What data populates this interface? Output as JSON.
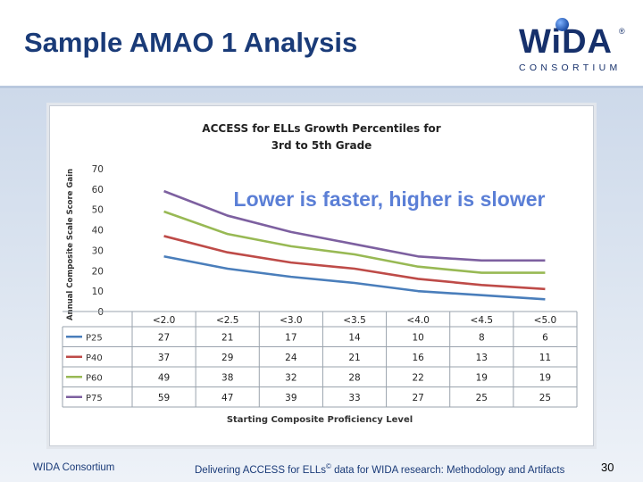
{
  "slide": {
    "title": "Sample AMAO 1 Analysis",
    "footer_left": "WIDA Consortium",
    "footer_center_pre": "Delivering ACCESS for ELLs",
    "footer_center_sup": "©",
    "footer_center_post": " data for WIDA research: Methodology and Artifacts",
    "page_number": "30"
  },
  "logo": {
    "word": "WiDA",
    "registered": "®",
    "subtitle": "CONSORTIUM"
  },
  "chart_data": {
    "type": "line",
    "title_line1": "ACCESS  for ELLs Growth Percentiles for",
    "title_line2": "3rd to 5th Grade",
    "annotation": "Lower is faster, higher is slower",
    "ylabel": "Annual Composite Scale Score Gain",
    "xlabel": "Starting Composite Proficiency Level",
    "ylim": [
      0,
      70
    ],
    "yticks": [
      0,
      10,
      20,
      30,
      40,
      50,
      60,
      70
    ],
    "categories": [
      "<2.0",
      "<2.5",
      "<3.0",
      "<3.5",
      "<4.0",
      "<4.5",
      "<5.0"
    ],
    "series": [
      {
        "name": "P25",
        "color": "#4a7ebb",
        "values": [
          27,
          21,
          17,
          14,
          10,
          8,
          6
        ]
      },
      {
        "name": "P40",
        "color": "#be4b48",
        "values": [
          37,
          29,
          24,
          21,
          16,
          13,
          11
        ]
      },
      {
        "name": "P60",
        "color": "#98b954",
        "values": [
          49,
          38,
          32,
          28,
          22,
          19,
          19
        ]
      },
      {
        "name": "P75",
        "color": "#7d60a0",
        "values": [
          59,
          47,
          39,
          33,
          27,
          25,
          25
        ]
      }
    ]
  }
}
